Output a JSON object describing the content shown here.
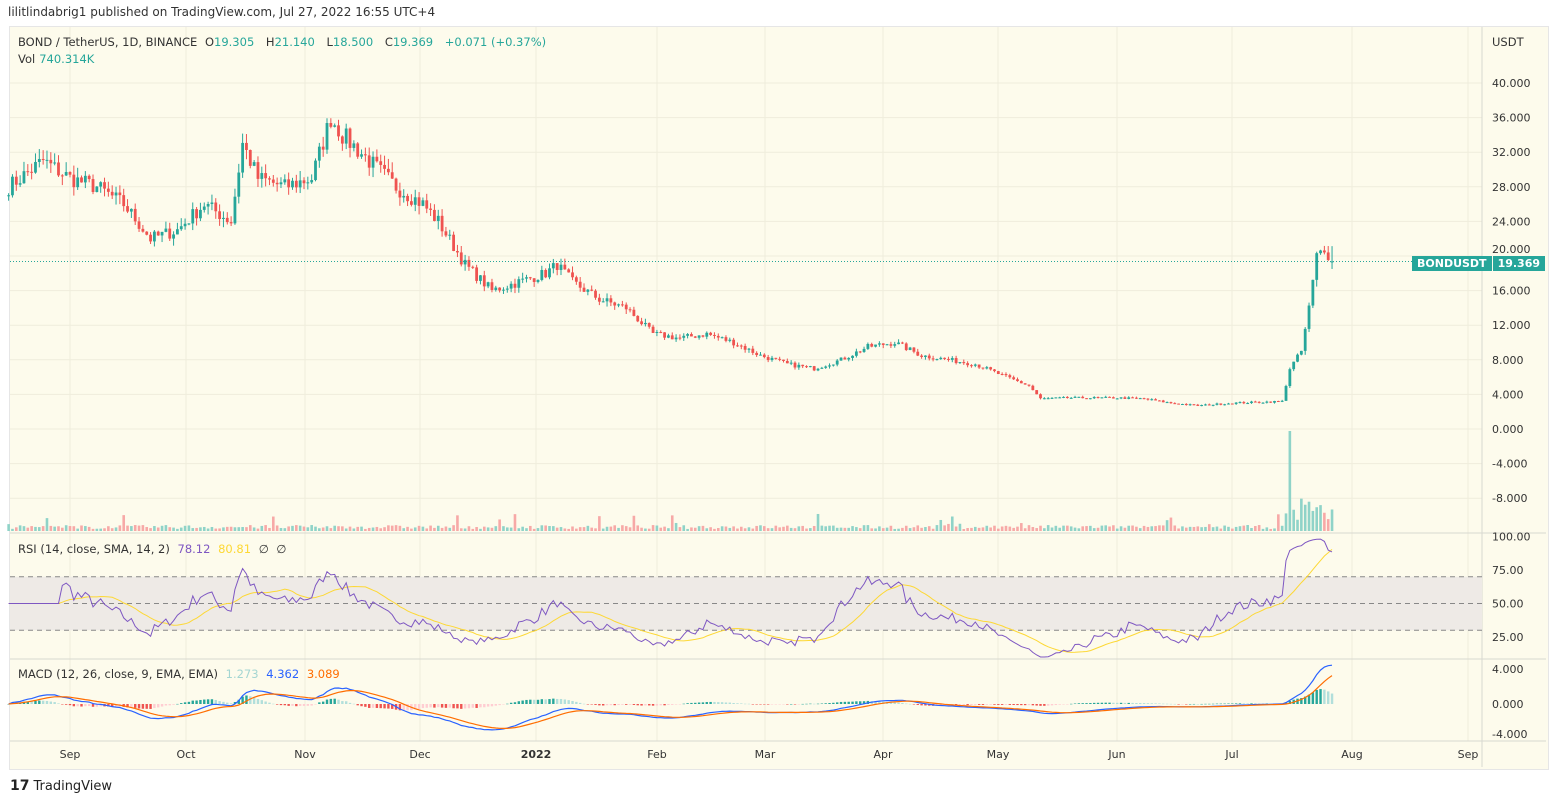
{
  "header": {
    "published": "lilitlindabrig1 published on TradingView.com, Jul 27, 2022 16:55 UTC+4"
  },
  "legend": {
    "symbol": "BOND / TetherUS, 1D, BINANCE",
    "open_label": "O",
    "open": "19.305",
    "high_label": "H",
    "high": "21.140",
    "low_label": "L",
    "low": "18.500",
    "close_label": "C",
    "close": "19.369",
    "change": "+0.071 (+0.37%)",
    "vol_label": "Vol",
    "vol": "740.314K"
  },
  "rsi_legend": {
    "title": "RSI (14, close, SMA, 14, 2)",
    "rsi": "78.12",
    "sma": "80.81",
    "extra1": "∅",
    "extra2": "∅"
  },
  "macd_legend": {
    "title": "MACD (12, 26, close, 9, EMA, EMA)",
    "hist": "1.273",
    "macd": "4.362",
    "signal": "3.089"
  },
  "price_axis": {
    "currency": "USDT",
    "ticks": [
      "40.000",
      "36.000",
      "32.000",
      "28.000",
      "24.000",
      "20.000",
      "16.000",
      "12.000",
      "8.000",
      "4.000",
      "0.000",
      "-4.000",
      "-8.000"
    ]
  },
  "price_tag": {
    "symbol": "BONDUSDT",
    "value": "19.369"
  },
  "rsi_axis": {
    "ticks": [
      "100.00",
      "75.00",
      "50.00",
      "25.00"
    ]
  },
  "macd_axis": {
    "ticks": [
      "4.000",
      "0.000",
      "-4.000"
    ]
  },
  "time_axis": {
    "labels": [
      "Sep",
      "Oct",
      "Nov",
      "Dec",
      "2022",
      "Feb",
      "Mar",
      "Apr",
      "May",
      "Jun",
      "Jul",
      "Aug",
      "Sep"
    ]
  },
  "footer": {
    "brand": "TradingView"
  },
  "colors": {
    "up": "#26a69a",
    "down": "#ef5350",
    "rsi": "#7e57c2",
    "rsi_sma": "#fdd835",
    "macd": "#2962ff",
    "signal": "#ff6d00",
    "bg": "#fdfbec"
  },
  "chart_data": {
    "type": "candlestick",
    "title": "BOND / TetherUS, 1D, BINANCE",
    "ylabel": "USDT",
    "ylim": [
      -10,
      44
    ],
    "start_date": "2021-08-16",
    "end_date": "2022-07-27",
    "close_keypoints": [
      [
        "2021-08-16",
        28
      ],
      [
        "2021-08-25",
        31
      ],
      [
        "2021-09-01",
        29
      ],
      [
        "2021-09-08",
        28
      ],
      [
        "2021-09-15",
        26
      ],
      [
        "2021-09-22",
        22
      ],
      [
        "2021-09-29",
        23
      ],
      [
        "2021-10-06",
        26
      ],
      [
        "2021-10-13",
        24
      ],
      [
        "2021-10-16",
        33
      ],
      [
        "2021-10-20",
        29
      ],
      [
        "2021-10-27",
        28
      ],
      [
        "2021-11-03",
        29
      ],
      [
        "2021-11-08",
        36
      ],
      [
        "2021-11-11",
        34
      ],
      [
        "2021-11-18",
        31
      ],
      [
        "2021-11-25",
        28
      ],
      [
        "2021-12-02",
        26
      ],
      [
        "2021-12-06",
        24
      ],
      [
        "2021-12-13",
        19
      ],
      [
        "2021-12-20",
        16
      ],
      [
        "2021-12-27",
        17
      ],
      [
        "2022-01-03",
        18
      ],
      [
        "2022-01-06",
        19
      ],
      [
        "2022-01-10",
        17
      ],
      [
        "2022-01-17",
        15
      ],
      [
        "2022-01-24",
        14
      ],
      [
        "2022-01-31",
        11
      ],
      [
        "2022-02-07",
        10.5
      ],
      [
        "2022-02-14",
        11
      ],
      [
        "2022-02-21",
        10
      ],
      [
        "2022-02-28",
        8.5
      ],
      [
        "2022-03-07",
        7.5
      ],
      [
        "2022-03-14",
        7
      ],
      [
        "2022-03-21",
        8
      ],
      [
        "2022-03-28",
        9.5
      ],
      [
        "2022-04-04",
        10
      ],
      [
        "2022-04-11",
        8.5
      ],
      [
        "2022-04-18",
        8
      ],
      [
        "2022-04-25",
        7.5
      ],
      [
        "2022-05-02",
        6.2
      ],
      [
        "2022-05-09",
        5
      ],
      [
        "2022-05-12",
        3.5
      ],
      [
        "2022-05-19",
        3.6
      ],
      [
        "2022-06-01",
        3.6
      ],
      [
        "2022-06-08",
        3.5
      ],
      [
        "2022-06-15",
        3
      ],
      [
        "2022-06-22",
        2.7
      ],
      [
        "2022-07-01",
        3
      ],
      [
        "2022-07-14",
        3.2
      ],
      [
        "2022-07-16",
        7
      ],
      [
        "2022-07-19",
        9
      ],
      [
        "2022-07-21",
        14
      ],
      [
        "2022-07-23",
        20
      ],
      [
        "2022-07-25",
        21
      ],
      [
        "2022-07-27",
        19.369
      ]
    ],
    "last_candle": {
      "open": 19.305,
      "high": 21.14,
      "low": 18.5,
      "close": 19.369,
      "volume": "740.314K"
    },
    "rsi": {
      "period": 14,
      "last": 78.12,
      "sma_last": 80.81,
      "bands": [
        70,
        50,
        30
      ],
      "ylim": [
        0,
        100
      ]
    },
    "macd": {
      "fast": 12,
      "slow": 26,
      "signal": 9,
      "hist_last": 1.273,
      "macd_last": 4.362,
      "signal_last": 3.089,
      "ylim": [
        -4,
        5
      ]
    }
  }
}
